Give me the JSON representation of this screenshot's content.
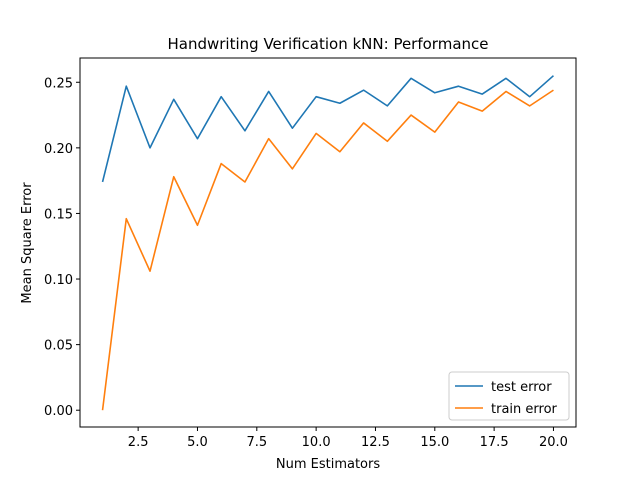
{
  "chart_data": {
    "type": "line",
    "title": "Handwriting Verification kNN: Performance",
    "xlabel": "Num Estimators",
    "ylabel": "Mean Square Error",
    "xlim": [
      0.05,
      20.95
    ],
    "ylim": [
      -0.0128,
      0.2685
    ],
    "xticks": [
      2.5,
      5.0,
      7.5,
      10.0,
      12.5,
      15.0,
      17.5,
      20.0
    ],
    "xtick_labels": [
      "2.5",
      "5.0",
      "7.5",
      "10.0",
      "12.5",
      "15.0",
      "17.5",
      "20.0"
    ],
    "yticks": [
      0.0,
      0.05,
      0.1,
      0.15,
      0.2,
      0.25
    ],
    "ytick_labels": [
      "0.00",
      "0.05",
      "0.10",
      "0.15",
      "0.20",
      "0.25"
    ],
    "grid": false,
    "legend_position": "bottom-right",
    "x": [
      1,
      2,
      3,
      4,
      5,
      6,
      7,
      8,
      9,
      10,
      11,
      12,
      13,
      14,
      15,
      16,
      17,
      18,
      19,
      20
    ],
    "series": [
      {
        "name": "test error",
        "color": "#1f77b4",
        "values": [
          0.174,
          0.247,
          0.2,
          0.237,
          0.207,
          0.239,
          0.213,
          0.243,
          0.215,
          0.239,
          0.234,
          0.244,
          0.232,
          0.253,
          0.242,
          0.247,
          0.241,
          0.253,
          0.239,
          0.255
        ]
      },
      {
        "name": "train error",
        "color": "#ff7f0e",
        "values": [
          0.0,
          0.146,
          0.106,
          0.178,
          0.141,
          0.188,
          0.174,
          0.207,
          0.184,
          0.211,
          0.197,
          0.219,
          0.205,
          0.225,
          0.212,
          0.235,
          0.228,
          0.243,
          0.232,
          0.244
        ]
      }
    ]
  }
}
